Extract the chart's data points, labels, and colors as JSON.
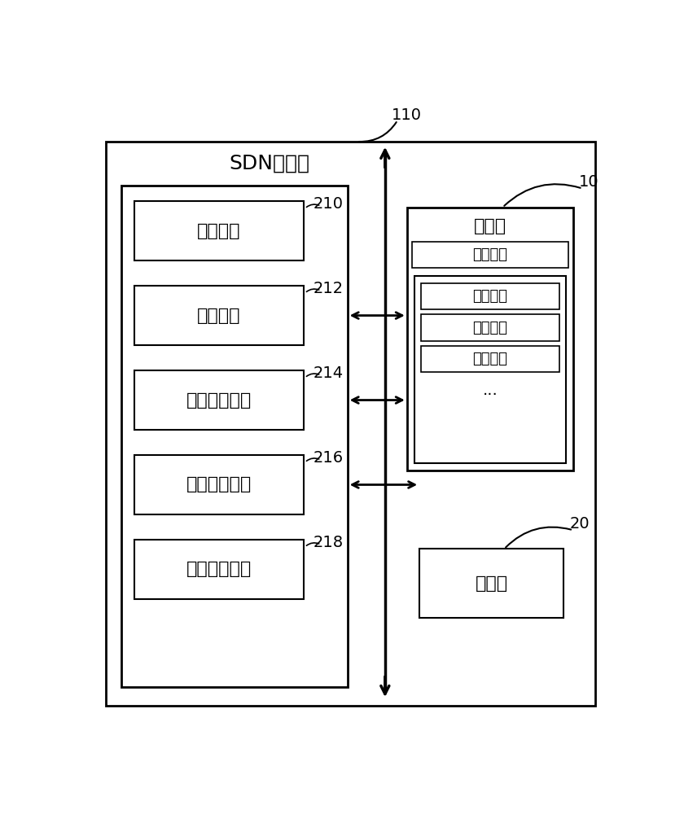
{
  "bg_color": "#ffffff",
  "title_sdn": "SDN控制器",
  "label_110": "110",
  "label_10": "10",
  "label_20": "20",
  "modules": [
    {
      "label": "监测模块",
      "ref": "210"
    },
    {
      "label": "分析模块",
      "ref": "212"
    },
    {
      "label": "第一部署模块",
      "ref": "214"
    },
    {
      "label": "第二部署模块",
      "ref": "216"
    },
    {
      "label": "第三部署模块",
      "ref": "218"
    }
  ],
  "storage_title": "存储器",
  "storage_items": [
    "拓扫信息",
    "第一流表",
    "第二流表",
    "第三流表",
    "..."
  ],
  "processor_label": "处理器",
  "font_size_title": 18,
  "font_size_module": 16,
  "font_size_ref": 14,
  "font_size_storage": 16,
  "font_size_storage_item": 13
}
